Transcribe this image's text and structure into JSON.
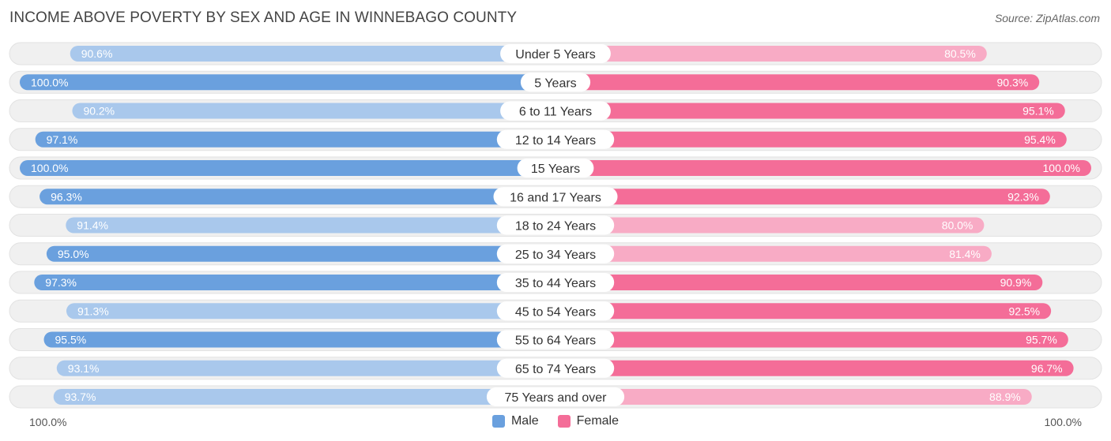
{
  "header": {
    "title": "INCOME ABOVE POVERTY BY SEX AND AGE IN WINNEBAGO COUNTY",
    "source": "Source: ZipAtlas.com"
  },
  "colors": {
    "male_strong": "#6aa0de",
    "male_light": "#a9c8ec",
    "female_strong": "#f46d98",
    "female_light": "#f8abc5",
    "track": "#f0f0f0"
  },
  "chart_data": {
    "type": "bar",
    "orientation": "diverging-horizontal",
    "categories": [
      "Under 5 Years",
      "5 Years",
      "6 to 11 Years",
      "12 to 14 Years",
      "15 Years",
      "16 and 17 Years",
      "18 to 24 Years",
      "25 to 34 Years",
      "35 to 44 Years",
      "45 to 54 Years",
      "55 to 64 Years",
      "65 to 74 Years",
      "75 Years and over"
    ],
    "series": [
      {
        "name": "Male",
        "values": [
          90.6,
          100.0,
          90.2,
          97.1,
          100.0,
          96.3,
          91.4,
          95.0,
          97.3,
          91.3,
          95.5,
          93.1,
          93.7
        ]
      },
      {
        "name": "Female",
        "values": [
          80.5,
          90.3,
          95.1,
          95.4,
          100.0,
          92.3,
          80.0,
          81.4,
          90.9,
          92.5,
          95.7,
          96.7,
          88.9
        ]
      }
    ],
    "value_labels": {
      "Male": [
        "90.6%",
        "100.0%",
        "90.2%",
        "97.1%",
        "100.0%",
        "96.3%",
        "91.4%",
        "95.0%",
        "97.3%",
        "91.3%",
        "95.5%",
        "93.1%",
        "93.7%"
      ],
      "Female": [
        "80.5%",
        "90.3%",
        "95.1%",
        "95.4%",
        "100.0%",
        "92.3%",
        "80.0%",
        "81.4%",
        "90.9%",
        "92.5%",
        "95.7%",
        "96.7%",
        "88.9%"
      ]
    },
    "xlim": [
      0,
      100
    ],
    "axis_left_label": "100.0%",
    "axis_right_label": "100.0%",
    "legend": [
      "Male",
      "Female"
    ],
    "legend_position": "bottom-center"
  }
}
